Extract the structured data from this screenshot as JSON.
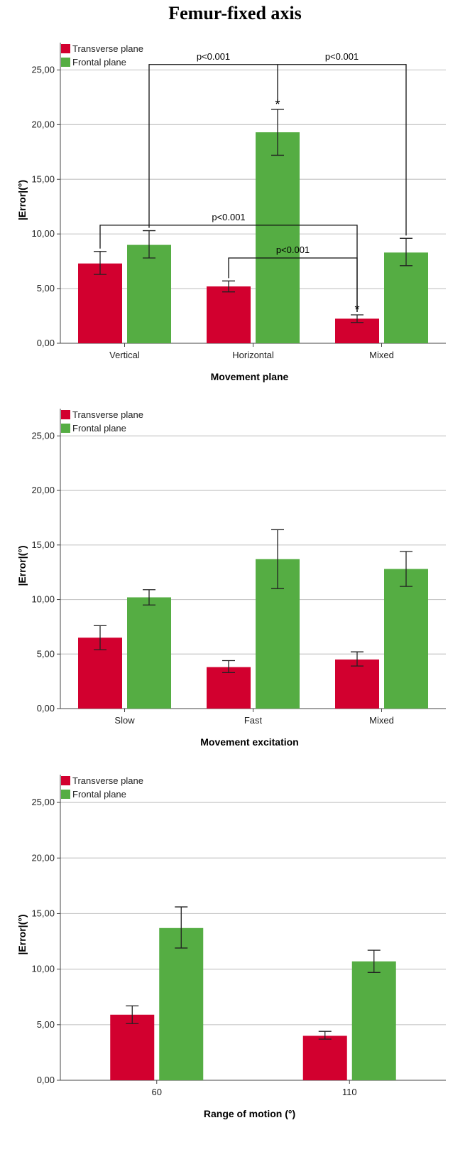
{
  "title": "Femur-fixed axis",
  "colors": {
    "transverse": "#d2002f",
    "frontal": "#55ad43",
    "grid": "#c8c8c8",
    "axis": "#444444"
  },
  "chart_data": [
    {
      "type": "bar",
      "xlabel": "Movement plane",
      "ylabel": "|Error|(°)",
      "ylim": [
        0,
        27.5
      ],
      "yticks": [
        "0,00",
        "5,00",
        "10,00",
        "15,00",
        "20,00",
        "25,00"
      ],
      "grid": true,
      "legend_position": "top-left",
      "categories": [
        "Vertical",
        "Horizontal",
        "Mixed"
      ],
      "series": [
        {
          "name": "Transverse plane",
          "values": [
            7.3,
            5.2,
            2.25
          ],
          "err_low": [
            6.3,
            4.7,
            1.9
          ],
          "err_high": [
            8.4,
            5.7,
            2.6
          ]
        },
        {
          "name": "Frontal plane",
          "values": [
            9.0,
            19.3,
            8.3
          ],
          "err_low": [
            7.8,
            17.2,
            7.1
          ],
          "err_high": [
            10.3,
            21.4,
            9.6
          ]
        }
      ],
      "annotations": [
        {
          "text": "p<0.001",
          "from": [
            0,
            1
          ],
          "to": [
            2,
            1
          ],
          "y": 25.5
        },
        {
          "text": "p<0.001",
          "from": [
            0,
            0
          ],
          "to": [
            2,
            0
          ],
          "y": 10.8
        },
        {
          "text": "p<0.001",
          "from": [
            1,
            0
          ],
          "to": [
            2,
            0
          ],
          "y": 7.8
        }
      ],
      "stars": [
        {
          "text": "*",
          "category": 1,
          "series": 1
        },
        {
          "text": "*",
          "category": 2,
          "series": 0
        }
      ]
    },
    {
      "type": "bar",
      "xlabel": "Movement excitation",
      "ylabel": "|Error|(°)",
      "ylim": [
        0,
        27.5
      ],
      "yticks": [
        "0,00",
        "5,00",
        "10,00",
        "15,00",
        "20,00",
        "25,00"
      ],
      "grid": true,
      "legend_position": "top-left",
      "categories": [
        "Slow",
        "Fast",
        "Mixed"
      ],
      "series": [
        {
          "name": "Transverse plane",
          "values": [
            6.5,
            3.8,
            4.5
          ],
          "err_low": [
            5.4,
            3.3,
            3.9
          ],
          "err_high": [
            7.6,
            4.4,
            5.2
          ]
        },
        {
          "name": "Frontal plane",
          "values": [
            10.2,
            13.7,
            12.8
          ],
          "err_low": [
            9.5,
            11.0,
            11.2
          ],
          "err_high": [
            10.9,
            16.4,
            14.4
          ]
        }
      ],
      "annotations": [],
      "stars": []
    },
    {
      "type": "bar",
      "xlabel": "Range of motion (°)",
      "ylabel": "|Error|(°)",
      "ylim": [
        0,
        27.5
      ],
      "yticks": [
        "0,00",
        "5,00",
        "10,00",
        "15,00",
        "20,00",
        "25,00"
      ],
      "grid": true,
      "legend_position": "top-left",
      "categories": [
        "60",
        "110"
      ],
      "series": [
        {
          "name": "Transverse plane",
          "values": [
            5.9,
            4.0
          ],
          "err_low": [
            5.1,
            3.7
          ],
          "err_high": [
            6.7,
            4.4
          ]
        },
        {
          "name": "Frontal plane",
          "values": [
            13.7,
            10.7
          ],
          "err_low": [
            11.9,
            9.7
          ],
          "err_high": [
            15.6,
            11.7
          ]
        }
      ],
      "annotations": [],
      "stars": []
    }
  ]
}
